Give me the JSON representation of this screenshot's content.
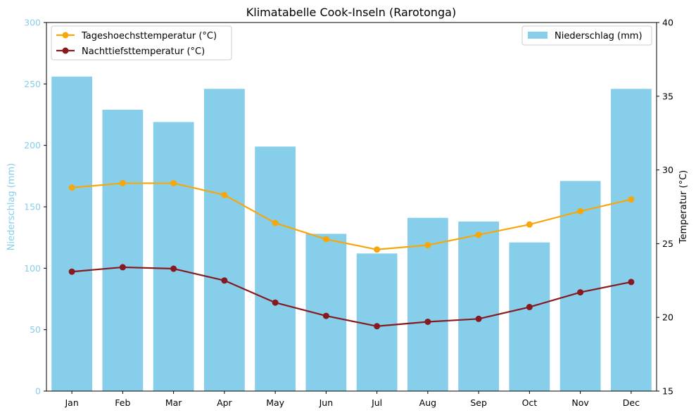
{
  "chart_data": {
    "type": "bar+line",
    "title": "Klimatabelle Cook-Inseln (Rarotonga)",
    "categories": [
      "Jan",
      "Feb",
      "Mar",
      "Apr",
      "May",
      "Jun",
      "Jul",
      "Aug",
      "Sep",
      "Oct",
      "Nov",
      "Dec"
    ],
    "left_axis": {
      "label": "Niederschlag (mm)",
      "ylim": [
        0,
        300
      ],
      "ticks": [
        "0",
        "50",
        "100",
        "150",
        "200",
        "250",
        "300"
      ],
      "color": "#87ceeb"
    },
    "right_axis": {
      "label": "Temperatur (°C)",
      "ylim": [
        15,
        40
      ],
      "ticks": [
        "15",
        "20",
        "25",
        "30",
        "35",
        "40"
      ],
      "color": "#000000"
    },
    "bar_series": {
      "name": "Niederschlag (mm)",
      "color": "#87ceeb",
      "values": [
        256,
        229,
        219,
        246,
        199,
        128,
        112,
        141,
        138,
        121,
        171,
        246
      ]
    },
    "line_series": [
      {
        "name": "Tageshoechsttemperatur (°C)",
        "color": "#f5a70c",
        "values": [
          28.8,
          29.1,
          29.1,
          28.3,
          26.4,
          25.3,
          24.6,
          24.9,
          25.6,
          26.3,
          27.2,
          28.0
        ]
      },
      {
        "name": "Nachttiefsttemperatur (°C)",
        "color": "#861a1e",
        "values": [
          23.1,
          23.4,
          23.3,
          22.5,
          21.0,
          20.1,
          19.4,
          19.7,
          19.9,
          20.7,
          21.7,
          22.4
        ]
      }
    ],
    "legends": {
      "lines_placement": "top-left",
      "bars_placement": "top-right"
    },
    "grid": false
  }
}
